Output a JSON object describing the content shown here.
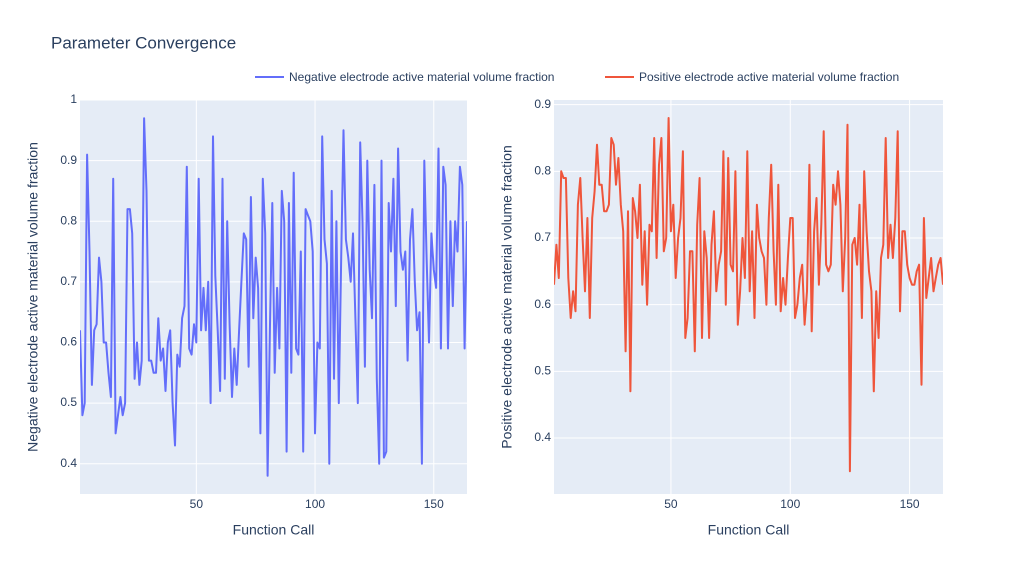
{
  "chart_data": [
    {
      "type": "line",
      "title": "Parameter Convergence",
      "xlabel": "Function Call",
      "ylabel": "Negative electrode active material volume fraction",
      "x": [
        1,
        2,
        3,
        4,
        5,
        6,
        7,
        8,
        9,
        10,
        11,
        12,
        13,
        14,
        15,
        16,
        17,
        18,
        19,
        20,
        21,
        22,
        23,
        24,
        25,
        26,
        27,
        28,
        29,
        30,
        31,
        32,
        33,
        34,
        35,
        36,
        37,
        38,
        39,
        40,
        41,
        42,
        43,
        44,
        45,
        46,
        47,
        48,
        49,
        50,
        51,
        52,
        53,
        54,
        55,
        56,
        57,
        58,
        59,
        60,
        61,
        62,
        63,
        64,
        65,
        66,
        67,
        68,
        69,
        70,
        71,
        72,
        73,
        74,
        75,
        76,
        77,
        78,
        79,
        80,
        81,
        82,
        83,
        84,
        85,
        86,
        87,
        88,
        89,
        90,
        91,
        92,
        93,
        94,
        95,
        96,
        97,
        98,
        99,
        100,
        101,
        102,
        103,
        104,
        105,
        106,
        107,
        108,
        109,
        110,
        111,
        112,
        113,
        114,
        115,
        116,
        117,
        118,
        119,
        120,
        121,
        122,
        123,
        124,
        125,
        126,
        127,
        128,
        129,
        130,
        131,
        132,
        133,
        134,
        135,
        136,
        137,
        138,
        139,
        140,
        141,
        142,
        143,
        144,
        145,
        146,
        147,
        148,
        149,
        150,
        151,
        152,
        153,
        154,
        155,
        156,
        157,
        158,
        159,
        160,
        161,
        162,
        163,
        164
      ],
      "series": [
        {
          "name": "Negative electrode active material volume fraction",
          "color": "#636efa",
          "values": [
            0.62,
            0.48,
            0.5,
            0.91,
            0.75,
            0.53,
            0.62,
            0.63,
            0.74,
            0.7,
            0.6,
            0.6,
            0.55,
            0.51,
            0.87,
            0.45,
            0.48,
            0.51,
            0.48,
            0.5,
            0.82,
            0.82,
            0.78,
            0.54,
            0.6,
            0.53,
            0.57,
            0.97,
            0.85,
            0.57,
            0.57,
            0.55,
            0.55,
            0.64,
            0.57,
            0.59,
            0.52,
            0.6,
            0.62,
            0.5,
            0.43,
            0.58,
            0.56,
            0.64,
            0.66,
            0.89,
            0.59,
            0.58,
            0.63,
            0.6,
            0.87,
            0.62,
            0.69,
            0.62,
            0.7,
            0.5,
            0.94,
            0.71,
            0.62,
            0.52,
            0.87,
            0.54,
            0.8,
            0.63,
            0.51,
            0.59,
            0.53,
            0.62,
            0.7,
            0.78,
            0.77,
            0.56,
            0.84,
            0.64,
            0.74,
            0.69,
            0.45,
            0.87,
            0.78,
            0.38,
            0.62,
            0.83,
            0.55,
            0.69,
            0.59,
            0.85,
            0.8,
            0.42,
            0.83,
            0.55,
            0.88,
            0.59,
            0.58,
            0.75,
            0.42,
            0.82,
            0.81,
            0.8,
            0.75,
            0.45,
            0.6,
            0.59,
            0.94,
            0.77,
            0.73,
            0.4,
            0.85,
            0.54,
            0.8,
            0.5,
            0.74,
            0.95,
            0.77,
            0.74,
            0.7,
            0.78,
            0.64,
            0.5,
            0.93,
            0.8,
            0.56,
            0.9,
            0.72,
            0.64,
            0.86,
            0.54,
            0.4,
            0.9,
            0.41,
            0.42,
            0.83,
            0.75,
            0.87,
            0.66,
            0.92,
            0.75,
            0.72,
            0.75,
            0.57,
            0.77,
            0.82,
            0.7,
            0.62,
            0.65,
            0.4,
            0.9,
            0.74,
            0.6,
            0.78,
            0.72,
            0.69,
            0.92,
            0.59,
            0.89,
            0.86,
            0.59,
            0.8,
            0.66,
            0.8,
            0.75,
            0.89,
            0.86,
            0.59,
            0.8
          ]
        }
      ],
      "xlim": [
        1,
        164
      ],
      "xticks": [
        50,
        100,
        150
      ],
      "ylim": [
        0.35,
        1.0
      ],
      "yticks": [
        0.4,
        0.5,
        0.6,
        0.7,
        0.8,
        0.9,
        1
      ],
      "grid": true
    },
    {
      "type": "line",
      "xlabel": "Function Call",
      "ylabel": "Positive electrode active material volume fraction",
      "x": [
        1,
        2,
        3,
        4,
        5,
        6,
        7,
        8,
        9,
        10,
        11,
        12,
        13,
        14,
        15,
        16,
        17,
        18,
        19,
        20,
        21,
        22,
        23,
        24,
        25,
        26,
        27,
        28,
        29,
        30,
        31,
        32,
        33,
        34,
        35,
        36,
        37,
        38,
        39,
        40,
        41,
        42,
        43,
        44,
        45,
        46,
        47,
        48,
        49,
        50,
        51,
        52,
        53,
        54,
        55,
        56,
        57,
        58,
        59,
        60,
        61,
        62,
        63,
        64,
        65,
        66,
        67,
        68,
        69,
        70,
        71,
        72,
        73,
        74,
        75,
        76,
        77,
        78,
        79,
        80,
        81,
        82,
        83,
        84,
        85,
        86,
        87,
        88,
        89,
        90,
        91,
        92,
        93,
        94,
        95,
        96,
        97,
        98,
        99,
        100,
        101,
        102,
        103,
        104,
        105,
        106,
        107,
        108,
        109,
        110,
        111,
        112,
        113,
        114,
        115,
        116,
        117,
        118,
        119,
        120,
        121,
        122,
        123,
        124,
        125,
        126,
        127,
        128,
        129,
        130,
        131,
        132,
        133,
        134,
        135,
        136,
        137,
        138,
        139,
        140,
        141,
        142,
        143,
        144,
        145,
        146,
        147,
        148,
        149,
        150,
        151,
        152,
        153,
        154,
        155,
        156,
        157,
        158,
        159,
        160,
        161,
        162,
        163,
        164
      ],
      "series": [
        {
          "name": "Positive electrode active material volume fraction",
          "color": "#ef553b",
          "values": [
            0.63,
            0.69,
            0.64,
            0.8,
            0.79,
            0.79,
            0.64,
            0.58,
            0.62,
            0.59,
            0.75,
            0.79,
            0.7,
            0.62,
            0.73,
            0.58,
            0.73,
            0.77,
            0.84,
            0.78,
            0.78,
            0.74,
            0.74,
            0.75,
            0.85,
            0.84,
            0.78,
            0.82,
            0.75,
            0.71,
            0.53,
            0.74,
            0.47,
            0.76,
            0.74,
            0.7,
            0.78,
            0.63,
            0.71,
            0.6,
            0.72,
            0.71,
            0.85,
            0.67,
            0.81,
            0.85,
            0.68,
            0.7,
            0.88,
            0.71,
            0.75,
            0.64,
            0.7,
            0.73,
            0.83,
            0.55,
            0.58,
            0.68,
            0.68,
            0.53,
            0.72,
            0.79,
            0.55,
            0.71,
            0.67,
            0.55,
            0.69,
            0.74,
            0.62,
            0.66,
            0.68,
            0.83,
            0.6,
            0.82,
            0.66,
            0.65,
            0.8,
            0.57,
            0.62,
            0.7,
            0.64,
            0.83,
            0.62,
            0.71,
            0.58,
            0.75,
            0.7,
            0.68,
            0.67,
            0.6,
            0.73,
            0.81,
            0.68,
            0.6,
            0.78,
            0.59,
            0.64,
            0.6,
            0.67,
            0.73,
            0.73,
            0.58,
            0.6,
            0.64,
            0.66,
            0.57,
            0.62,
            0.81,
            0.56,
            0.71,
            0.76,
            0.63,
            0.72,
            0.86,
            0.66,
            0.65,
            0.66,
            0.78,
            0.75,
            0.8,
            0.75,
            0.62,
            0.7,
            0.87,
            0.35,
            0.69,
            0.7,
            0.66,
            0.75,
            0.58,
            0.8,
            0.71,
            0.65,
            0.62,
            0.47,
            0.62,
            0.55,
            0.67,
            0.69,
            0.85,
            0.67,
            0.72,
            0.67,
            0.73,
            0.86,
            0.59,
            0.71,
            0.71,
            0.66,
            0.64,
            0.63,
            0.63,
            0.65,
            0.66,
            0.48,
            0.73,
            0.61,
            0.64,
            0.67,
            0.62,
            0.64,
            0.66,
            0.67,
            0.63
          ]
        }
      ],
      "xlim": [
        1,
        164
      ],
      "xticks": [
        50,
        100,
        150
      ],
      "ylim": [
        0.316,
        0.907
      ],
      "yticks": [
        0.4,
        0.5,
        0.6,
        0.7,
        0.8,
        0.9
      ],
      "grid": true
    }
  ]
}
